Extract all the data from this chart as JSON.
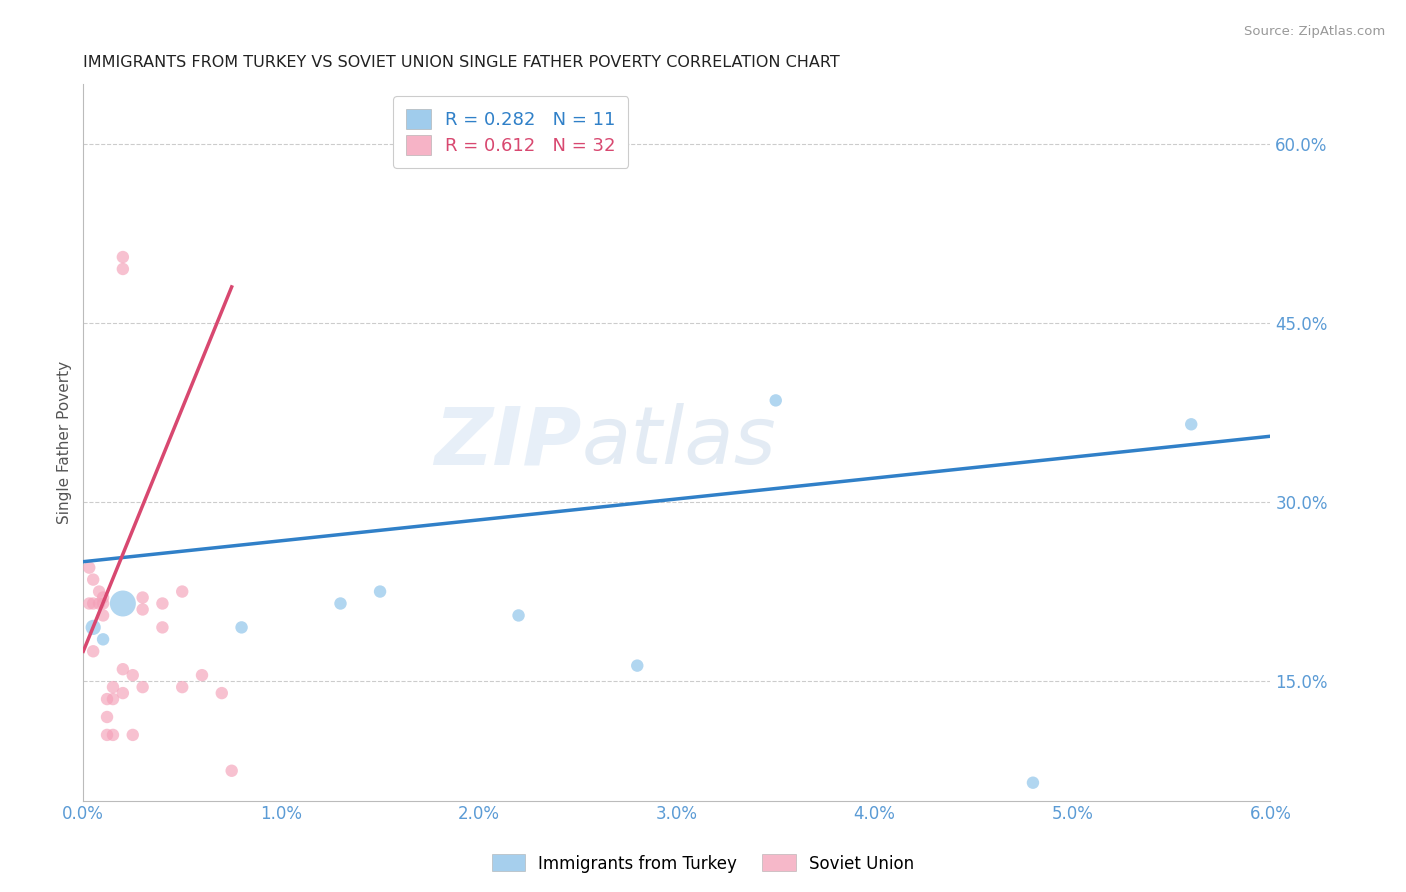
{
  "title": "IMMIGRANTS FROM TURKEY VS SOVIET UNION SINGLE FATHER POVERTY CORRELATION CHART",
  "source": "Source: ZipAtlas.com",
  "ylabel": "Single Father Poverty",
  "xlim": [
    0.0,
    0.06
  ],
  "ylim": [
    0.05,
    0.65
  ],
  "xticks": [
    0.0,
    0.01,
    0.02,
    0.03,
    0.04,
    0.05,
    0.06
  ],
  "xticklabels": [
    "0.0%",
    "1.0%",
    "2.0%",
    "3.0%",
    "4.0%",
    "5.0%",
    "6.0%"
  ],
  "yticks": [
    0.15,
    0.3,
    0.45,
    0.6
  ],
  "yticklabels": [
    "15.0%",
    "30.0%",
    "45.0%",
    "60.0%"
  ],
  "turkey_R": 0.282,
  "turkey_N": 11,
  "soviet_R": 0.612,
  "soviet_N": 32,
  "turkey_color": "#88c0e8",
  "soviet_color": "#f4a0b8",
  "turkey_line_color": "#3080c8",
  "soviet_line_color": "#d84870",
  "watermark_zip": "ZIP",
  "watermark_atlas": "atlas",
  "turkey_x": [
    0.0005,
    0.001,
    0.002,
    0.008,
    0.013,
    0.015,
    0.022,
    0.028,
    0.035,
    0.048,
    0.056
  ],
  "turkey_y": [
    0.195,
    0.185,
    0.215,
    0.195,
    0.215,
    0.225,
    0.205,
    0.163,
    0.385,
    0.065,
    0.365
  ],
  "turkey_sizes": [
    120,
    80,
    350,
    80,
    80,
    80,
    80,
    80,
    80,
    80,
    80
  ],
  "soviet_x": [
    0.0003,
    0.0003,
    0.0005,
    0.0005,
    0.0005,
    0.0008,
    0.0008,
    0.001,
    0.001,
    0.001,
    0.0012,
    0.0012,
    0.0012,
    0.0015,
    0.0015,
    0.0015,
    0.002,
    0.002,
    0.002,
    0.002,
    0.0025,
    0.0025,
    0.003,
    0.003,
    0.003,
    0.004,
    0.004,
    0.005,
    0.005,
    0.006,
    0.007,
    0.0075
  ],
  "soviet_y": [
    0.215,
    0.245,
    0.175,
    0.215,
    0.235,
    0.215,
    0.225,
    0.22,
    0.215,
    0.205,
    0.135,
    0.12,
    0.105,
    0.145,
    0.135,
    0.105,
    0.505,
    0.495,
    0.16,
    0.14,
    0.155,
    0.105,
    0.22,
    0.21,
    0.145,
    0.215,
    0.195,
    0.225,
    0.145,
    0.155,
    0.14,
    0.075
  ],
  "soviet_sizes": [
    80,
    80,
    80,
    80,
    80,
    80,
    80,
    80,
    80,
    80,
    80,
    80,
    80,
    80,
    80,
    80,
    80,
    80,
    80,
    80,
    80,
    80,
    80,
    80,
    80,
    80,
    80,
    80,
    80,
    80,
    80,
    80
  ],
  "turkey_trend_x0": 0.0,
  "turkey_trend_y0": 0.25,
  "turkey_trend_x1": 0.06,
  "turkey_trend_y1": 0.355,
  "soviet_trend_x0": 0.0,
  "soviet_trend_y0": 0.175,
  "soviet_trend_x1": 0.0075,
  "soviet_trend_y1": 0.48
}
